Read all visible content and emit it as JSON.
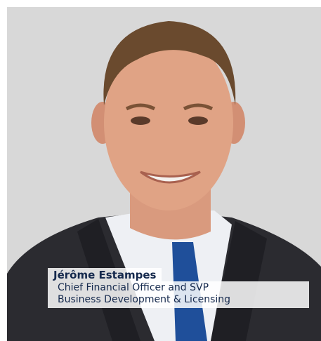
{
  "profile": {
    "name": "Jérôme Estampes",
    "title_lines": [
      "Chief Financial Officer and SVP",
      "Business Development & Licensing"
    ]
  }
}
